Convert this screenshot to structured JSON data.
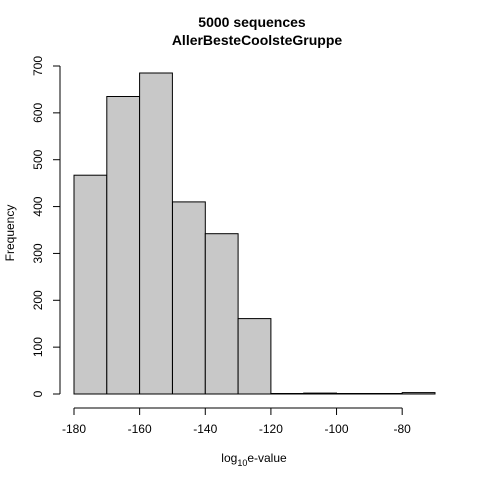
{
  "chart_data": {
    "type": "bar",
    "title": "5000  sequences",
    "subtitle": "AllerBesteCoolsteGruppe",
    "xlabel_base": "log",
    "xlabel_sub": "10",
    "xlabel_rest": "e-value",
    "ylabel": "Frequency",
    "bins": [
      {
        "from": -180,
        "to": -170,
        "value": 467
      },
      {
        "from": -170,
        "to": -160,
        "value": 635
      },
      {
        "from": -160,
        "to": -150,
        "value": 685
      },
      {
        "from": -150,
        "to": -140,
        "value": 410
      },
      {
        "from": -140,
        "to": -130,
        "value": 342
      },
      {
        "from": -130,
        "to": -120,
        "value": 161
      },
      {
        "from": -120,
        "to": -110,
        "value": 1
      },
      {
        "from": -110,
        "to": -100,
        "value": 2
      },
      {
        "from": -100,
        "to": -90,
        "value": 1
      },
      {
        "from": -90,
        "to": -80,
        "value": 1
      },
      {
        "from": -80,
        "to": -70,
        "value": 3
      }
    ],
    "x_ticks": [
      "-180",
      "-160",
      "-140",
      "-120",
      "-100",
      "-80"
    ],
    "y_ticks": [
      "0",
      "100",
      "200",
      "300",
      "400",
      "500",
      "600",
      "700"
    ],
    "xlim": [
      -180,
      -70
    ],
    "ylim": [
      0,
      700
    ],
    "grid": false,
    "bar_color": "#c8c8c8"
  }
}
